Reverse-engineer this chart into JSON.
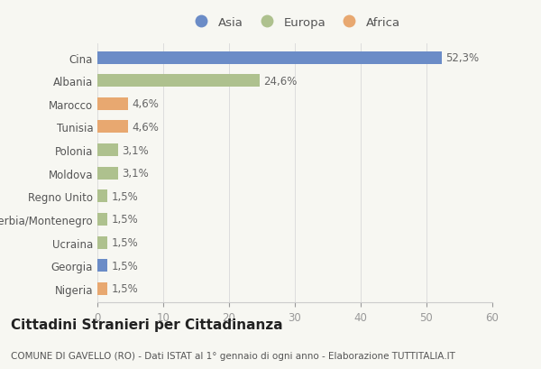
{
  "countries": [
    "Cina",
    "Albania",
    "Marocco",
    "Tunisia",
    "Polonia",
    "Moldova",
    "Regno Unito",
    "Serbia/Montenegro",
    "Ucraina",
    "Georgia",
    "Nigeria"
  ],
  "values": [
    52.3,
    24.6,
    4.6,
    4.6,
    3.1,
    3.1,
    1.5,
    1.5,
    1.5,
    1.5,
    1.5
  ],
  "labels": [
    "52,3%",
    "24,6%",
    "4,6%",
    "4,6%",
    "3,1%",
    "3,1%",
    "1,5%",
    "1,5%",
    "1,5%",
    "1,5%",
    "1,5%"
  ],
  "continents": [
    "Asia",
    "Europa",
    "Africa",
    "Africa",
    "Europa",
    "Europa",
    "Europa",
    "Europa",
    "Europa",
    "Asia",
    "Africa"
  ],
  "continent_colors": {
    "Asia": "#6b8cc7",
    "Europa": "#aec18e",
    "Africa": "#e8a870"
  },
  "legend_order": [
    "Asia",
    "Europa",
    "Africa"
  ],
  "xlim": [
    0,
    60
  ],
  "xticks": [
    0,
    10,
    20,
    30,
    40,
    50,
    60
  ],
  "title": "Cittadini Stranieri per Cittadinanza",
  "subtitle": "COMUNE DI GAVELLO (RO) - Dati ISTAT al 1° gennaio di ogni anno - Elaborazione TUTTITALIA.IT",
  "background_color": "#f7f7f2",
  "bar_height": 0.55,
  "label_fontsize": 8.5,
  "title_fontsize": 11,
  "subtitle_fontsize": 7.5,
  "tick_fontsize": 8.5,
  "legend_fontsize": 9.5
}
